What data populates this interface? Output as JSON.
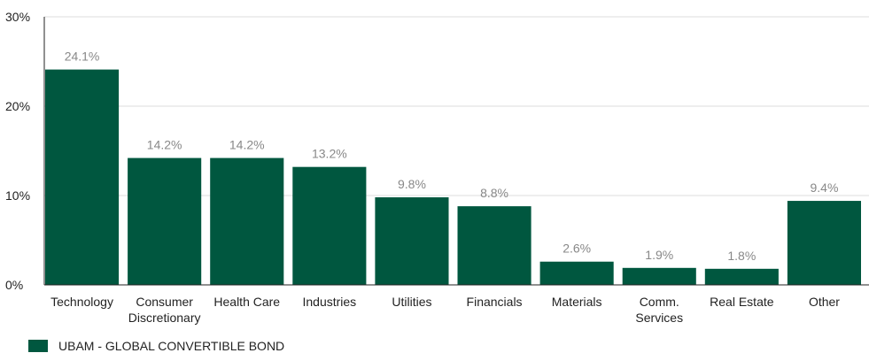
{
  "chart_data": {
    "type": "bar",
    "categories": [
      [
        "Technology"
      ],
      [
        "Consumer",
        "Discretionary"
      ],
      [
        "Health Care"
      ],
      [
        "Industries"
      ],
      [
        "Utilities"
      ],
      [
        "Financials"
      ],
      [
        "Materials"
      ],
      [
        "Comm.",
        "Services"
      ],
      [
        "Real Estate"
      ],
      [
        "Other"
      ]
    ],
    "series": [
      {
        "name": "UBAM - GLOBAL CONVERTIBLE BOND",
        "values": [
          24.1,
          14.2,
          14.2,
          13.2,
          9.8,
          8.8,
          2.6,
          1.9,
          1.8,
          9.4
        ],
        "labels": [
          "24.1%",
          "14.2%",
          "14.2%",
          "13.2%",
          "9.8%",
          "8.8%",
          "2.6%",
          "1.9%",
          "1.8%",
          "9.4%"
        ],
        "color": "#00573f"
      }
    ],
    "yticks": [
      0,
      10,
      20,
      30
    ],
    "ytick_labels": [
      "0%",
      "10%",
      "20%",
      "30%"
    ],
    "ylim": [
      0,
      30
    ],
    "grid": true,
    "legend": "bottom-left",
    "gridline_color": "#dddddd",
    "axis_color": "#222222"
  }
}
